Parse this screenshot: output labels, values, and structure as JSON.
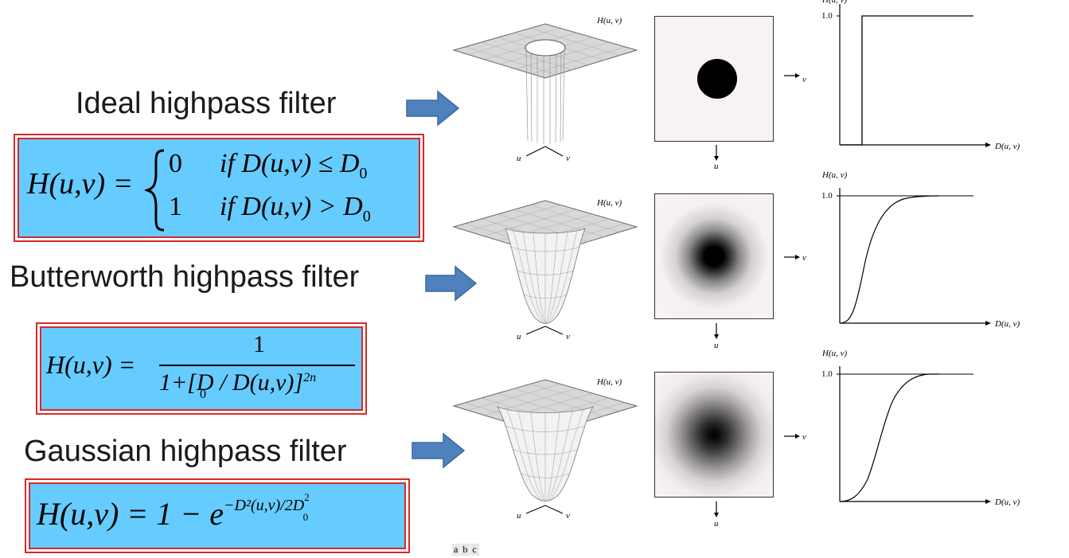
{
  "rows": [
    {
      "title": "Ideal highpass filter",
      "formula_cases": [
        "0",
        "if D(u,v) ≤ D",
        "1",
        "if D(u,v) > D"
      ]
    },
    {
      "title": "Butterworth highpass filter",
      "formula_lhs": "H(u,v) =",
      "formula_num": "1",
      "formula_den": "1+[D / D(u,v)]",
      "formula_exp": "2n"
    },
    {
      "title": "Gaussian highpass filter",
      "formula": "H(u,v) = 1 − e",
      "formula_exp": "−D²(u,v)/2D"
    }
  ],
  "axis_labels": {
    "H": "H(u, v)",
    "u": "u",
    "v": "v",
    "D": "D(u, v)",
    "one": "1.0"
  },
  "subfigure_labels": [
    "a",
    "b",
    "c"
  ],
  "colors": {
    "formula_bg": "#66ccff",
    "formula_border": "#d42a2a",
    "arrow": "#4f81bd"
  }
}
